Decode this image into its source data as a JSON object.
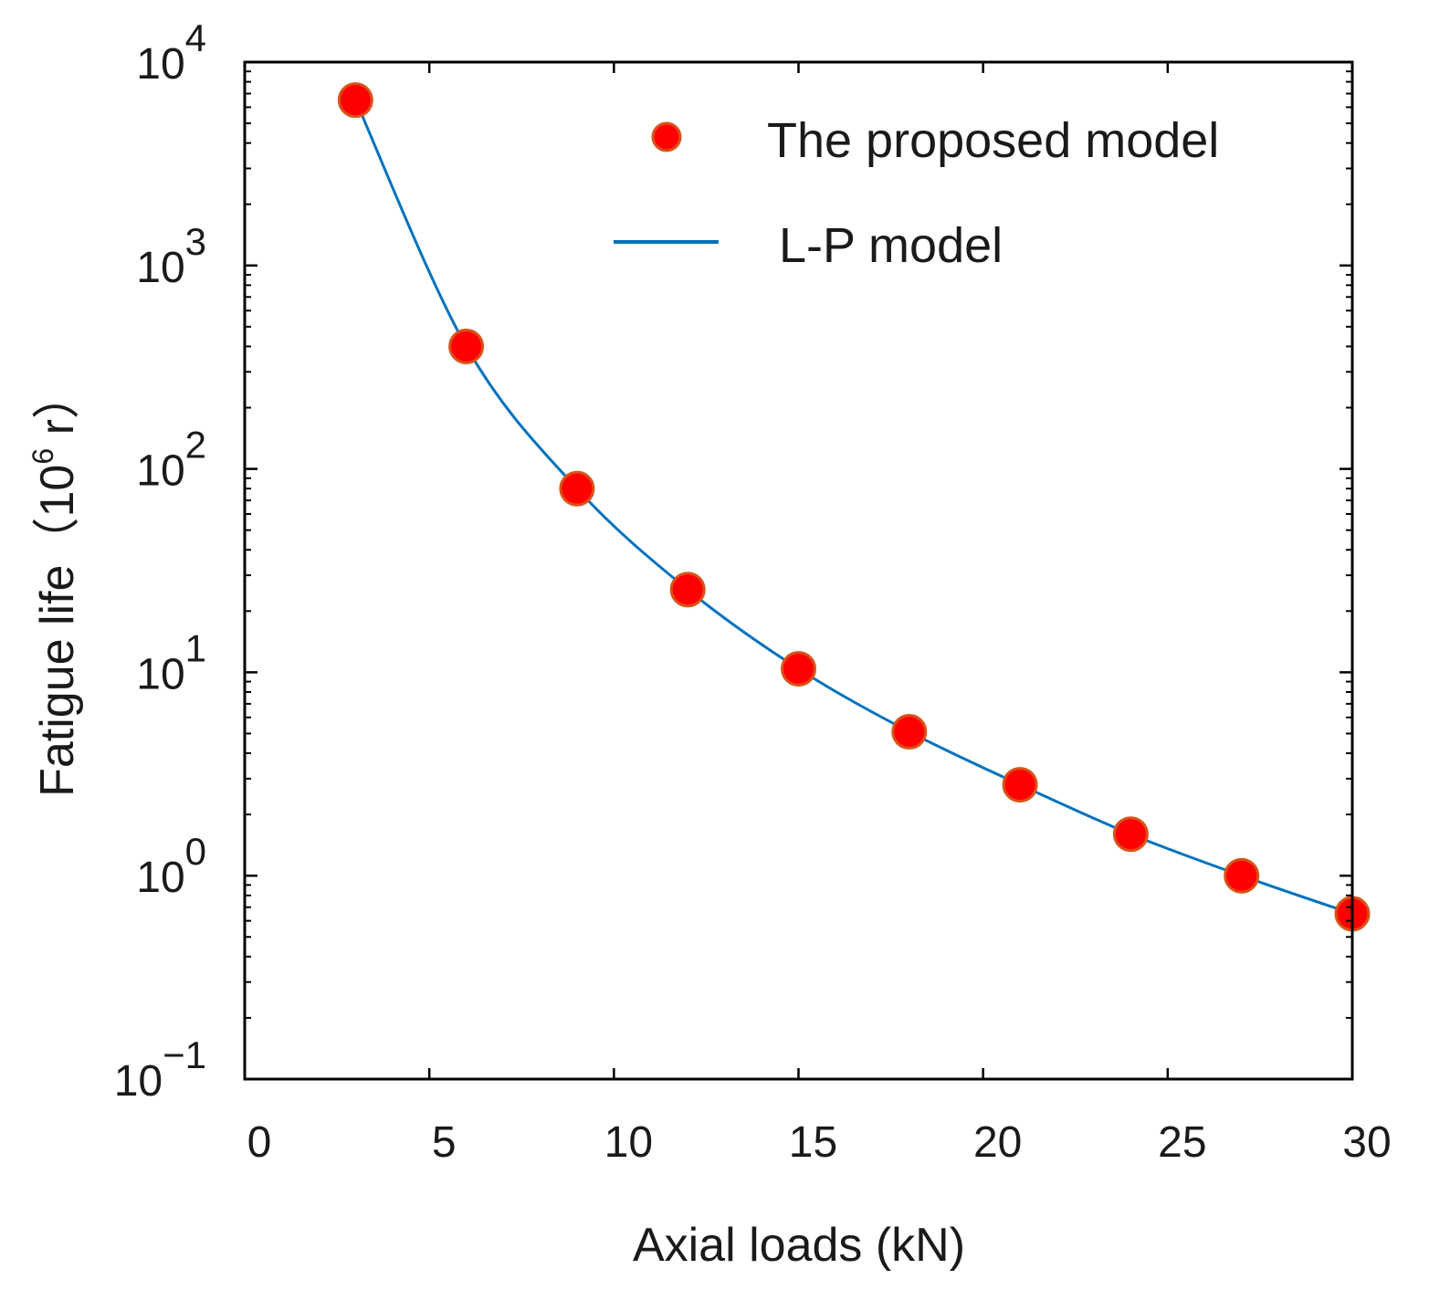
{
  "chart_data": {
    "type": "scatter",
    "title": "",
    "xlabel": "Axial loads (kN)",
    "ylabel": {
      "main": "Fatigue life",
      "open_paren": "（",
      "unit_base": "10",
      "unit_exp": "6",
      "unit_rest": " r",
      "close_paren": "）"
    },
    "xlim": [
      0,
      30
    ],
    "ylim": [
      0.1,
      10000
    ],
    "yscale": "log",
    "x_ticks": [
      0,
      5,
      10,
      15,
      20,
      25,
      30
    ],
    "x_tick_labels": [
      "0",
      "5",
      "10",
      "15",
      "20",
      "25",
      "30"
    ],
    "y_ticks": [
      {
        "value": 0.1,
        "base": "10",
        "exp": "−1"
      },
      {
        "value": 1,
        "base": "10",
        "exp": "0"
      },
      {
        "value": 10,
        "base": "10",
        "exp": "1"
      },
      {
        "value": 100,
        "base": "10",
        "exp": "2"
      },
      {
        "value": 1000,
        "base": "10",
        "exp": "3"
      },
      {
        "value": 10000,
        "base": "10",
        "exp": "4"
      }
    ],
    "grid": false,
    "legend_position": "top-right",
    "series": [
      {
        "name": "The proposed model",
        "kind": "marker",
        "color": "#ff0000",
        "edge_color": "#d95319",
        "x": [
          3,
          6,
          9,
          12,
          15,
          18,
          21,
          24,
          27,
          30
        ],
        "y": [
          6500,
          400,
          80,
          25.5,
          10.4,
          5.1,
          2.8,
          1.6,
          1.0,
          0.65
        ]
      },
      {
        "name": "L-P model",
        "kind": "line",
        "color": "#0072bd",
        "x": [
          3,
          6,
          9,
          12,
          15,
          18,
          21,
          24,
          27,
          30
        ],
        "y": [
          6500,
          400,
          80,
          25.5,
          10.4,
          5.1,
          2.8,
          1.6,
          1.0,
          0.65
        ]
      }
    ]
  }
}
